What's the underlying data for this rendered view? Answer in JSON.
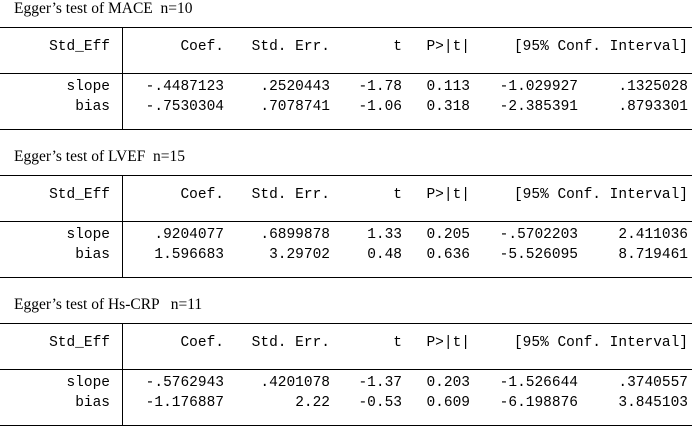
{
  "tables": [
    {
      "title": "Egger’s test of MACE  n=10",
      "headers": [
        "Std_Eff",
        "Coef.",
        "Std. Err.",
        "t",
        "P>|t|",
        "[95% Conf. Interval]"
      ],
      "rows": [
        [
          "slope",
          "-.4487123",
          ".2520443",
          "-1.78",
          "0.113",
          "-1.029927",
          ".1325028"
        ],
        [
          "bias",
          "-.7530304",
          ".7078741",
          "-1.06",
          "0.318",
          "-2.385391",
          ".8793301"
        ]
      ]
    },
    {
      "title": "Egger’s test of LVEF  n=15",
      "headers": [
        "Std_Eff",
        "Coef.",
        "Std. Err.",
        "t",
        "P>|t|",
        "[95% Conf. Interval]"
      ],
      "rows": [
        [
          "slope",
          ".9204077",
          ".6899878",
          "1.33",
          "0.205",
          "-.5702203",
          "2.411036"
        ],
        [
          "bias",
          "1.596683",
          "3.29702",
          "0.48",
          "0.636",
          "-5.526095",
          "8.719461"
        ]
      ]
    },
    {
      "title": "Egger’s test of Hs-CRP   n=11",
      "headers": [
        "Std_Eff",
        "Coef.",
        "Std. Err.",
        "t",
        "P>|t|",
        "[95% Conf. Interval]"
      ],
      "rows": [
        [
          "slope",
          "-.5762943",
          ".4201078",
          "-1.37",
          "0.203",
          "-1.526644",
          ".3740557"
        ],
        [
          "bias",
          "-1.176887",
          "2.22",
          "-0.53",
          "0.609",
          "-6.198876",
          "3.845103"
        ]
      ]
    }
  ]
}
